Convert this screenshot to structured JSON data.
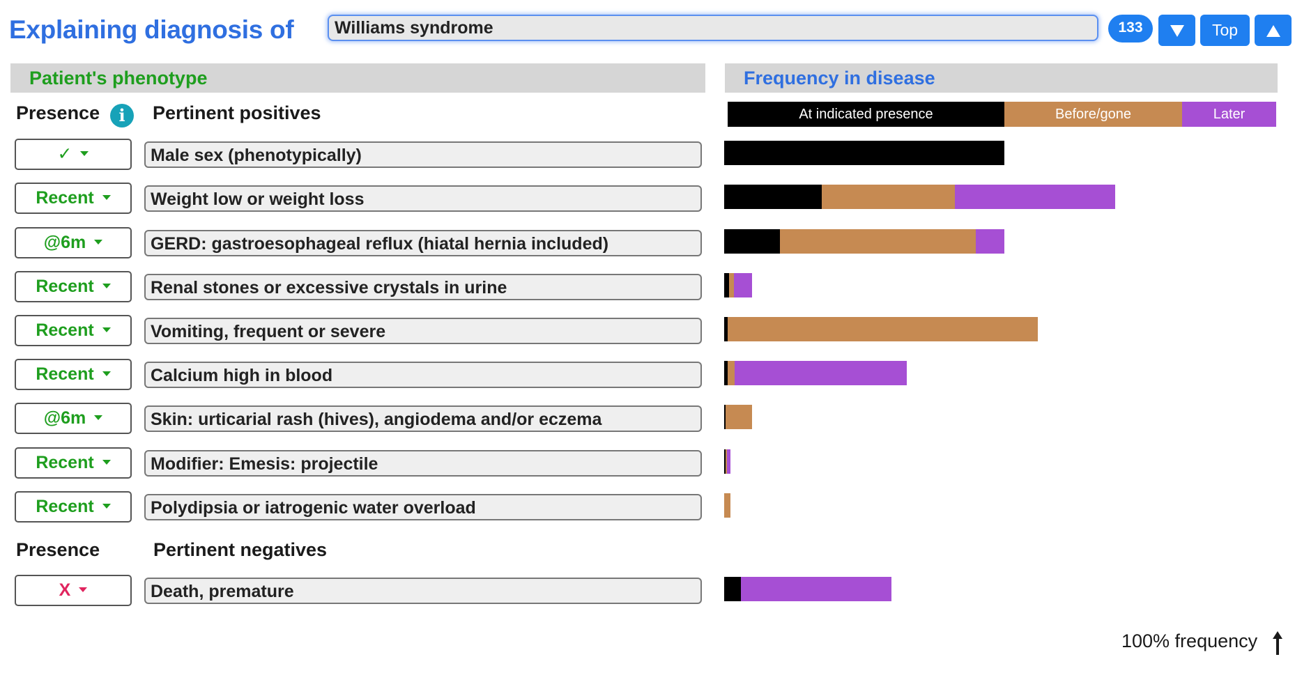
{
  "header": {
    "title": "Explaining diagnosis of",
    "diagnosis_value": "Williams syndrome",
    "count": "133",
    "top_label": "Top"
  },
  "sections": {
    "left_title": "Patient's phenotype",
    "right_title": "Frequency in disease"
  },
  "columns": {
    "presence": "Presence",
    "positives": "Pertinent positives",
    "negatives": "Pertinent negatives"
  },
  "legend": {
    "at_presence": "At indicated presence",
    "before_gone": "Before/gone",
    "later": "Later"
  },
  "colors": {
    "at_presence": "#000000",
    "before_gone": "#c68a52",
    "later": "#a64fd4"
  },
  "positives": [
    {
      "presence": "✓",
      "finding": "Male sex (phenotypically)",
      "freq": {
        "at": 0.505,
        "before": 0.0,
        "later": 0.0
      }
    },
    {
      "presence": "Recent",
      "finding": "Weight low or weight loss",
      "freq": {
        "at": 0.176,
        "before": 0.24,
        "later": 0.289
      }
    },
    {
      "presence": "@6m",
      "finding": "GERD: gastroesophageal reflux (hiatal hernia included)",
      "freq": {
        "at": 0.1,
        "before": 0.353,
        "later": 0.052
      }
    },
    {
      "presence": "Recent",
      "finding": "Renal stones or excessive crystals in urine",
      "freq": {
        "at": 0.009,
        "before": 0.009,
        "later": 0.033
      }
    },
    {
      "presence": "Recent",
      "finding": "Vomiting, frequent or severe",
      "freq": {
        "at": 0.006,
        "before": 0.558,
        "later": 0.0
      }
    },
    {
      "presence": "Recent",
      "finding": "Calcium high in blood",
      "freq": {
        "at": 0.006,
        "before": 0.012,
        "later": 0.31
      }
    },
    {
      "presence": "@6m",
      "finding": "Skin: urticarial rash (hives), angiodema and/or eczema",
      "freq": {
        "at": 0.003,
        "before": 0.048,
        "later": 0.0
      }
    },
    {
      "presence": "Recent",
      "finding": "Modifier: Emesis: projectile",
      "freq": {
        "at": 0.002,
        "before": 0.003,
        "later": 0.006
      }
    },
    {
      "presence": "Recent",
      "finding": "Polydipsia or iatrogenic water overload",
      "freq": {
        "at": 0.0,
        "before": 0.011,
        "later": 0.0
      }
    }
  ],
  "negatives": [
    {
      "presence": "X",
      "finding": "Death, premature",
      "freq": {
        "at": 0.03,
        "before": 0.0,
        "later": 0.271
      }
    }
  ],
  "footer": {
    "frequency_note": "100% frequency"
  }
}
